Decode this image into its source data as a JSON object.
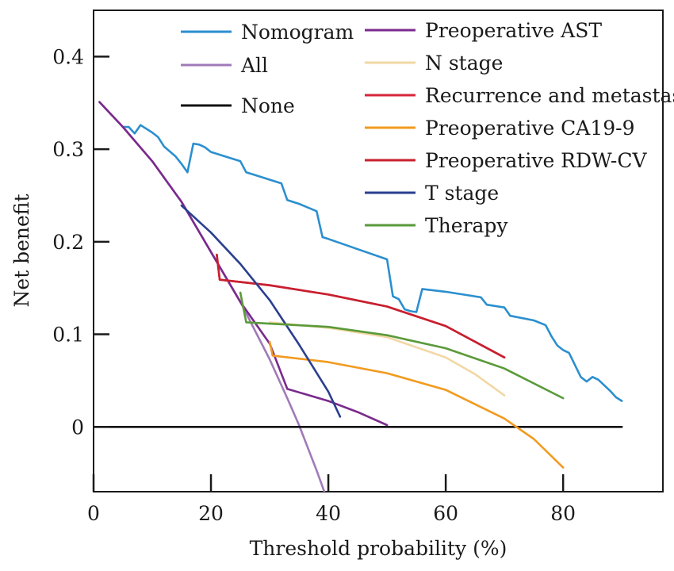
{
  "chart_data": {
    "type": "line",
    "xlabel": "Threshold probability (%)",
    "ylabel": "Net benefit",
    "xlim": [
      0,
      97
    ],
    "ylim": [
      -0.07,
      0.45
    ],
    "xticks": [
      {
        "value": 0,
        "label": "0"
      },
      {
        "value": 20,
        "label": "20"
      },
      {
        "value": 40,
        "label": "40"
      },
      {
        "value": 60,
        "label": "60"
      },
      {
        "value": 80,
        "label": "80"
      }
    ],
    "yticks": [
      {
        "value": 0,
        "label": "0"
      },
      {
        "value": 0.1,
        "label": "0.1"
      },
      {
        "value": 0.2,
        "label": "0.2"
      },
      {
        "value": 0.3,
        "label": "0.3"
      },
      {
        "value": 0.4,
        "label": "0.4"
      }
    ],
    "grid": false,
    "legend_position": "top",
    "series": [
      {
        "name": "Nomogram",
        "color": "#2b8fcf",
        "points": [
          [
            5,
            0.324
          ],
          [
            6,
            0.324
          ],
          [
            7,
            0.317
          ],
          [
            8,
            0.326
          ],
          [
            10,
            0.318
          ],
          [
            11,
            0.313
          ],
          [
            12,
            0.303
          ],
          [
            14,
            0.292
          ],
          [
            15,
            0.284
          ],
          [
            16,
            0.275
          ],
          [
            17,
            0.306
          ],
          [
            18,
            0.305
          ],
          [
            19,
            0.302
          ],
          [
            20,
            0.297
          ],
          [
            25,
            0.287
          ],
          [
            26,
            0.275
          ],
          [
            28,
            0.271
          ],
          [
            32,
            0.263
          ],
          [
            33,
            0.245
          ],
          [
            35,
            0.241
          ],
          [
            38,
            0.233
          ],
          [
            39,
            0.205
          ],
          [
            40,
            0.203
          ],
          [
            45,
            0.192
          ],
          [
            50,
            0.181
          ],
          [
            51,
            0.141
          ],
          [
            52,
            0.138
          ],
          [
            53,
            0.127
          ],
          [
            54,
            0.125
          ],
          [
            55,
            0.124
          ],
          [
            56,
            0.149
          ],
          [
            60,
            0.146
          ],
          [
            66,
            0.14
          ],
          [
            67,
            0.132
          ],
          [
            70,
            0.129
          ],
          [
            71,
            0.12
          ],
          [
            75,
            0.115
          ],
          [
            77,
            0.11
          ],
          [
            78,
            0.098
          ],
          [
            79,
            0.088
          ],
          [
            80,
            0.083
          ],
          [
            81,
            0.08
          ],
          [
            82,
            0.067
          ],
          [
            83,
            0.054
          ],
          [
            84,
            0.049
          ],
          [
            85,
            0.054
          ],
          [
            86,
            0.051
          ],
          [
            87,
            0.045
          ],
          [
            88,
            0.039
          ],
          [
            89,
            0.032
          ],
          [
            90,
            0.028
          ]
        ]
      },
      {
        "name": "All",
        "color": "#a07ab8",
        "points": [
          [
            1,
            0.351
          ],
          [
            5,
            0.324
          ],
          [
            10,
            0.287
          ],
          [
            15,
            0.243
          ],
          [
            20,
            0.189
          ],
          [
            25,
            0.135
          ],
          [
            30,
            0.073
          ],
          [
            33,
            0.031
          ],
          [
            35,
            0.002
          ],
          [
            38,
            -0.047
          ],
          [
            40,
            -0.082
          ]
        ]
      },
      {
        "name": "None",
        "color": "#111111",
        "points": [
          [
            0,
            0
          ],
          [
            90,
            0
          ]
        ]
      },
      {
        "name": "Preoperative AST",
        "color": "#7a2a8c",
        "points": [
          [
            1,
            0.351
          ],
          [
            5,
            0.324
          ],
          [
            10,
            0.287
          ],
          [
            15,
            0.243
          ],
          [
            20,
            0.189
          ],
          [
            25,
            0.135
          ],
          [
            30,
            0.09
          ],
          [
            33,
            0.041
          ],
          [
            40,
            0.028
          ],
          [
            45,
            0.016
          ],
          [
            50,
            0.002
          ]
        ]
      },
      {
        "name": "N stage",
        "color": "#f2d7a5",
        "points": [
          [
            30,
            0.113
          ],
          [
            40,
            0.107
          ],
          [
            50,
            0.097
          ],
          [
            60,
            0.075
          ],
          [
            65,
            0.057
          ],
          [
            70,
            0.034
          ]
        ]
      },
      {
        "name": "Recurrence and metastasis",
        "color": "#d7263d",
        "points": [
          [
            21,
            0.186
          ],
          [
            21.5,
            0.159
          ],
          [
            30,
            0.153
          ],
          [
            40,
            0.143
          ],
          [
            50,
            0.13
          ],
          [
            60,
            0.109
          ],
          [
            70,
            0.075
          ]
        ]
      },
      {
        "name": "Preoperative CA19-9",
        "color": "#f29a1f",
        "points": [
          [
            30,
            0.092
          ],
          [
            30.5,
            0.077
          ],
          [
            40,
            0.07
          ],
          [
            50,
            0.058
          ],
          [
            60,
            0.04
          ],
          [
            70,
            0.009
          ],
          [
            75,
            -0.013
          ],
          [
            80,
            -0.044
          ]
        ]
      },
      {
        "name": "Preoperative RDW-CV",
        "color": "#c8202f",
        "points": [
          [
            21,
            0.186
          ],
          [
            21.5,
            0.159
          ],
          [
            30,
            0.153
          ],
          [
            40,
            0.143
          ],
          [
            50,
            0.13
          ],
          [
            60,
            0.109
          ],
          [
            70,
            0.075
          ]
        ]
      },
      {
        "name": "T stage",
        "color": "#2a3f8f",
        "points": [
          [
            15,
            0.239
          ],
          [
            20,
            0.21
          ],
          [
            25,
            0.176
          ],
          [
            30,
            0.137
          ],
          [
            35,
            0.089
          ],
          [
            40,
            0.038
          ],
          [
            42,
            0.011
          ]
        ]
      },
      {
        "name": "Therapy",
        "color": "#5a9a3a",
        "points": [
          [
            25,
            0.145
          ],
          [
            26,
            0.113
          ],
          [
            40,
            0.108
          ],
          [
            50,
            0.099
          ],
          [
            60,
            0.085
          ],
          [
            70,
            0.063
          ],
          [
            80,
            0.031
          ]
        ]
      }
    ]
  }
}
